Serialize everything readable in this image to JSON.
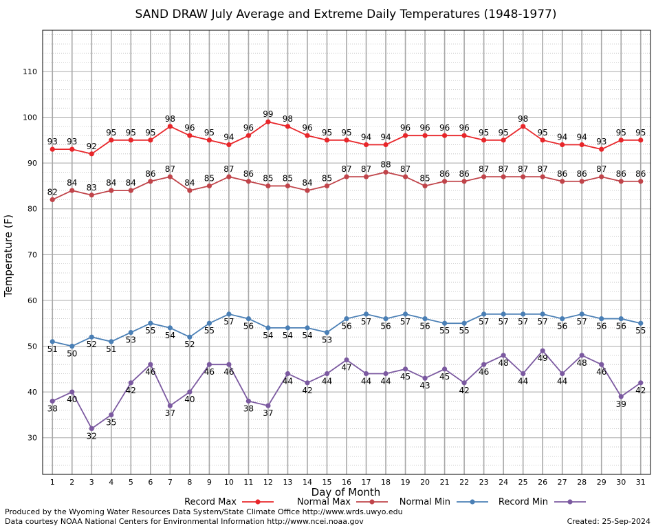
{
  "chart_data": {
    "type": "line",
    "title": "SAND DRAW July Average and Extreme Daily Temperatures (1948-1977)",
    "xlabel": "Day of Month",
    "ylabel": "Temperature (F)",
    "x": [
      1,
      2,
      3,
      4,
      5,
      6,
      7,
      8,
      9,
      10,
      11,
      12,
      13,
      14,
      15,
      16,
      17,
      18,
      19,
      20,
      21,
      22,
      23,
      24,
      25,
      26,
      27,
      28,
      29,
      30,
      31
    ],
    "xlim": [
      0.5,
      31.5
    ],
    "ylim": [
      22,
      119
    ],
    "yticks": [
      30,
      40,
      50,
      60,
      70,
      80,
      90,
      100,
      110
    ],
    "grid": true,
    "legend_position": "bottom",
    "series": [
      {
        "name": "Record Max",
        "color": "#e8262a",
        "values": [
          93,
          93,
          92,
          95,
          95,
          95,
          98,
          96,
          95,
          94,
          96,
          99,
          98,
          96,
          95,
          95,
          94,
          94,
          96,
          96,
          96,
          96,
          95,
          95,
          98,
          95,
          94,
          94,
          93,
          95,
          95
        ]
      },
      {
        "name": "Normal Max",
        "color": "#c0444a",
        "values": [
          82,
          84,
          83,
          84,
          84,
          86,
          87,
          84,
          85,
          87,
          86,
          85,
          85,
          84,
          85,
          87,
          87,
          88,
          87,
          85,
          86,
          86,
          87,
          87,
          87,
          87,
          86,
          86,
          87,
          86,
          86
        ]
      },
      {
        "name": "Normal Min",
        "color": "#4a7fb5",
        "values": [
          51,
          50,
          52,
          51,
          53,
          55,
          54,
          52,
          55,
          57,
          56,
          54,
          54,
          54,
          53,
          56,
          57,
          56,
          57,
          56,
          55,
          55,
          57,
          57,
          57,
          57,
          56,
          57,
          56,
          56,
          55
        ]
      },
      {
        "name": "Record Min",
        "color": "#7b59a0",
        "values": [
          38,
          40,
          32,
          35,
          42,
          46,
          37,
          40,
          46,
          46,
          38,
          37,
          44,
          42,
          44,
          47,
          44,
          44,
          45,
          43,
          45,
          42,
          46,
          48,
          44,
          49,
          44,
          48,
          46,
          39,
          42
        ]
      }
    ]
  },
  "footer": {
    "produced_by": "Produced by the Wyoming Water Resources Data System/State Climate Office http://www.wrds.uwyo.edu",
    "courtesy": "Data courtesy NOAA National Centers for Environmental Information http://www.ncei.noaa.gov",
    "created": "Created:  25-Sep-2024"
  }
}
